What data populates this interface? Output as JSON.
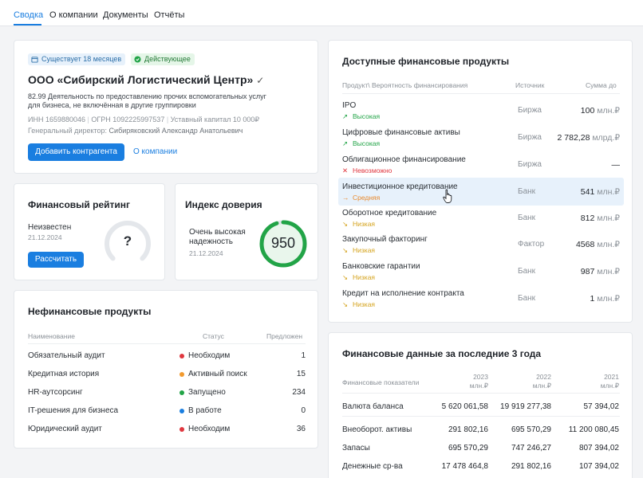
{
  "tabs": [
    "Сводка",
    "О компании",
    "Документы",
    "Отчёты"
  ],
  "company": {
    "badge_age": "Существует 18 месяцев",
    "badge_status": "Действующее",
    "name": "ООО «Сибирский Логистический Центр»",
    "activity_line1": "82.99 Деятельность по предоставлению прочих вспомогательных услуг",
    "activity_line2": "для бизнеса, не включённая в другие группировки",
    "inn": "ИНН 1659880046",
    "ogrn": "ОГРН 1092225997537",
    "capital": "Уставный капитал 10 000₽",
    "director_label": "Генеральный директор:",
    "director_name": "Сибиряковский Александр Анатольевич",
    "add_button": "Добавить контрагента",
    "about_link": "О компании"
  },
  "rating": {
    "title": "Финансовый рейтинг",
    "status": "Неизвестен",
    "date": "21.12.2024",
    "button": "Рассчитать",
    "gauge_value": "?"
  },
  "trust": {
    "title": "Индекс доверия",
    "line1": "Очень высокая",
    "line2": "надежность",
    "date": "21.12.2024",
    "value": "950",
    "ring_fraction": 0.95,
    "ring_color": "#22a447"
  },
  "nonfin": {
    "title": "Нефинансовые продукты",
    "headers": [
      "Наименование",
      "Статус",
      "Предложен"
    ],
    "rows": [
      {
        "name": "Обязательный аудит",
        "status": "Необходим",
        "color": "#e0373f",
        "count": "1"
      },
      {
        "name": "Кредитная история",
        "status": "Активный поиск",
        "color": "#f29a2e",
        "count": "15"
      },
      {
        "name": "HR-аутсорсинг",
        "status": "Запущено",
        "color": "#22a447",
        "count": "234"
      },
      {
        "name": "IT-решения для бизнеса",
        "status": "В работе",
        "color": "#1a7ee0",
        "count": "0"
      },
      {
        "name": "Юридический аудит",
        "status": "Необходим",
        "color": "#e0373f",
        "count": "36"
      }
    ]
  },
  "products": {
    "title": "Доступные финансовые продукты",
    "headers": [
      "Продукт\\ Вероятность финансирования",
      "Источник",
      "Сумма до"
    ],
    "rows": [
      {
        "name": "IPO",
        "prob": "Высокая",
        "prob_icon": "↗",
        "prob_color": "#22a447",
        "source": "Биржа",
        "amount": "100",
        "unit": "млн.₽"
      },
      {
        "name": "Цифровые финансовые активы",
        "prob": "Высокая",
        "prob_icon": "↗",
        "prob_color": "#22a447",
        "source": "Биржа",
        "amount": "2 782,28",
        "unit": "млрд.₽"
      },
      {
        "name": "Облигационное финансирование",
        "prob": "Невозможно",
        "prob_icon": "✕",
        "prob_color": "#e0373f",
        "source": "Биржа",
        "amount": "—",
        "unit": ""
      },
      {
        "name": "Инвестиционное кредитование",
        "prob": "Средняя",
        "prob_icon": "→",
        "prob_color": "#e8892c",
        "source": "Банк",
        "amount": "541",
        "unit": "млн.₽"
      },
      {
        "name": "Оборотное кредитование",
        "prob": "Низкая",
        "prob_icon": "↘",
        "prob_color": "#d4a21a",
        "source": "Банк",
        "amount": "812",
        "unit": "млн.₽"
      },
      {
        "name": "Закупочный факторинг",
        "prob": "Низкая",
        "prob_icon": "↘",
        "prob_color": "#d4a21a",
        "source": "Фактор",
        "amount": "4568",
        "unit": "млн.₽"
      },
      {
        "name": "Банковские гарантии",
        "prob": "Низкая",
        "prob_icon": "↘",
        "prob_color": "#d4a21a",
        "source": "Банк",
        "amount": "987",
        "unit": "млн.₽"
      },
      {
        "name": "Кредит на исполнение контракта",
        "prob": "Низкая",
        "prob_icon": "↘",
        "prob_color": "#d4a21a",
        "source": "Банк",
        "amount": "1",
        "unit": "млн.₽"
      }
    ]
  },
  "findata": {
    "title": "Финансовые данные за последние 3 года",
    "header_label": "Финансовые показатели",
    "years": [
      "2023",
      "2022",
      "2021"
    ],
    "unit": "млн.₽",
    "rows": [
      {
        "name": "Валюта баланса",
        "v": [
          "5 620 061,58",
          "19 919 277,38",
          "57 394,02"
        ]
      },
      {
        "name": "Внеоборот. активы",
        "v": [
          "291 802,16",
          "695 570,29",
          "11 200 080,45"
        ]
      },
      {
        "name": "Запасы",
        "v": [
          "695 570,29",
          "747 246,27",
          "807 394,02"
        ]
      },
      {
        "name": "Денежные ср-ва",
        "v": [
          "17 478 464,8",
          "291 802,16",
          "107 394,02"
        ]
      }
    ]
  }
}
